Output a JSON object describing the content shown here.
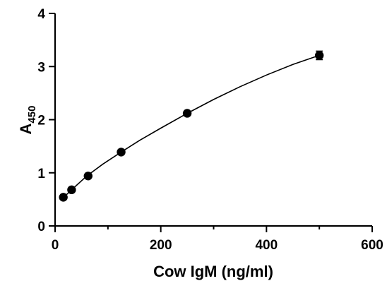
{
  "chart_data": {
    "type": "scatter",
    "title": "",
    "xlabel": "Cow IgM (ng/ml)",
    "ylabel_main": "A",
    "ylabel_sub": "450",
    "xlim": [
      0,
      600
    ],
    "ylim": [
      0,
      4
    ],
    "x_ticks": [
      0,
      200,
      400,
      600
    ],
    "y_ticks": [
      0,
      1,
      2,
      3,
      4
    ],
    "x_minor_ticks": [
      100,
      300,
      500
    ],
    "grid": false,
    "legend": "none",
    "points": [
      {
        "x": 15.6,
        "y": 0.54,
        "err": 0.03
      },
      {
        "x": 31.25,
        "y": 0.68,
        "err": 0.03
      },
      {
        "x": 62.5,
        "y": 0.94,
        "err": 0.03
      },
      {
        "x": 125,
        "y": 1.39,
        "err": 0.03
      },
      {
        "x": 250,
        "y": 2.12,
        "err": 0.03
      },
      {
        "x": 500,
        "y": 3.21,
        "err": 0.08
      }
    ],
    "fit_curve": {
      "x": [
        15.6,
        30,
        60,
        90,
        125,
        160,
        200,
        250,
        300,
        350,
        400,
        450,
        500
      ],
      "y": [
        0.53,
        0.67,
        0.94,
        1.16,
        1.39,
        1.61,
        1.84,
        2.12,
        2.38,
        2.62,
        2.84,
        3.04,
        3.21
      ]
    },
    "marker_color": "#000000"
  }
}
